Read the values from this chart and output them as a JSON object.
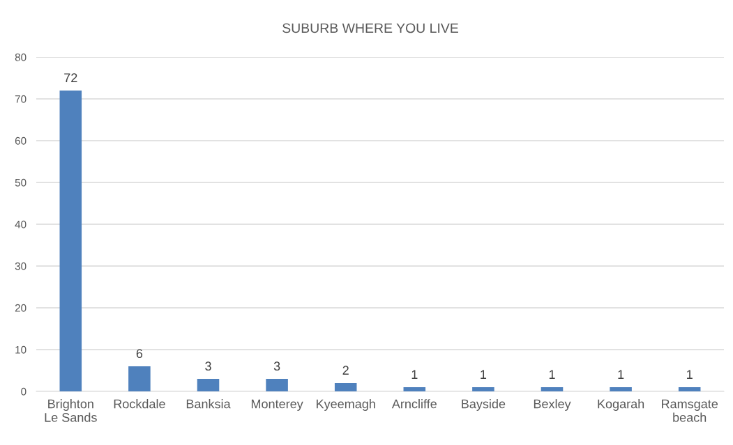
{
  "chart_data": {
    "type": "bar",
    "title": "SUBURB WHERE YOU LIVE",
    "categories": [
      "Brighton Le Sands",
      "Rockdale",
      "Banksia",
      "Monterey",
      "Kyeemagh",
      "Arncliffe",
      "Bayside",
      "Bexley",
      "Kogarah",
      "Ramsgate beach"
    ],
    "values": [
      72,
      6,
      3,
      3,
      2,
      1,
      1,
      1,
      1,
      1
    ],
    "color": "#4f81bd",
    "ylim": [
      0,
      80
    ],
    "yticks": [
      0,
      10,
      20,
      30,
      40,
      50,
      60,
      70,
      80
    ],
    "grid": "y",
    "data_labels": true
  }
}
